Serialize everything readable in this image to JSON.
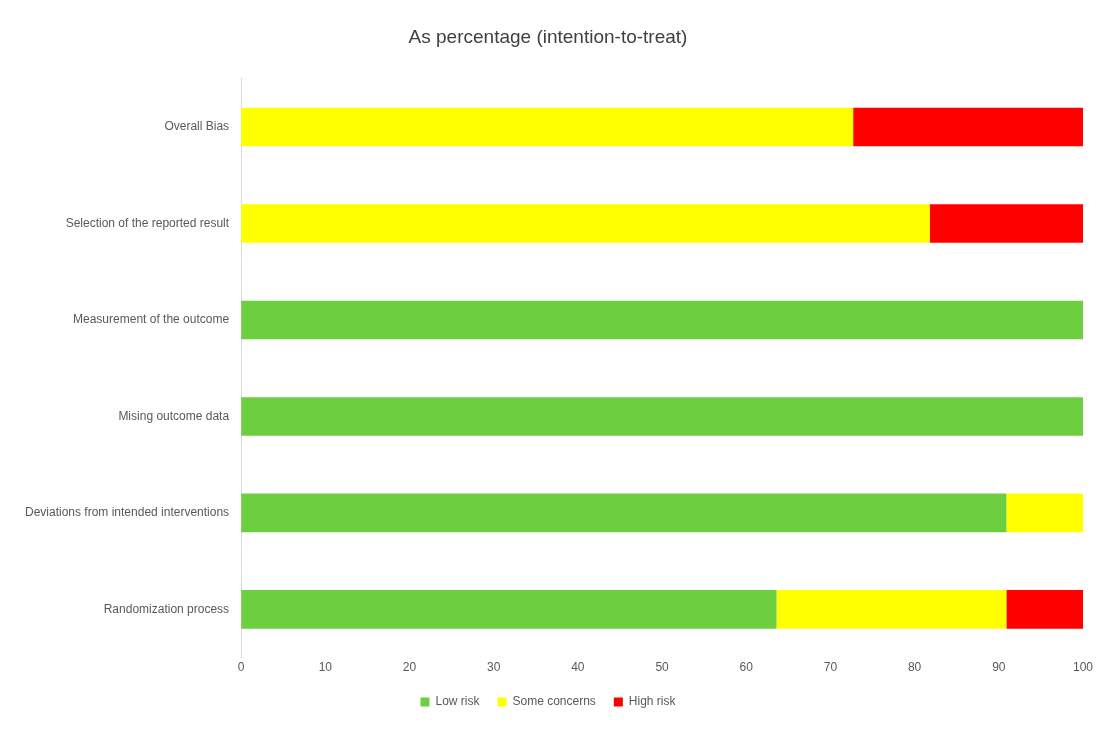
{
  "chart_data": {
    "type": "bar",
    "title": "As percentage (intention-to-treat)",
    "orientation": "horizontal",
    "stacked": true,
    "categories": [
      "Overall Bias",
      "Selection of the reported result",
      "Measurement of the outcome",
      "Mising outcome data",
      "Deviations from intended interventions",
      "Randomization process"
    ],
    "series": [
      {
        "name": "Low risk",
        "color": "#6dcf3f",
        "values": [
          0,
          0,
          100,
          100,
          90.9,
          63.6
        ]
      },
      {
        "name": "Some concerns",
        "color": "#ffff00",
        "values": [
          72.7,
          81.8,
          0,
          0,
          9.1,
          27.3
        ]
      },
      {
        "name": "High risk",
        "color": "#ff0000",
        "values": [
          27.3,
          18.2,
          0,
          0,
          0,
          9.1
        ]
      }
    ],
    "xlim": [
      0,
      100
    ],
    "xticks": [
      0,
      10,
      20,
      30,
      40,
      50,
      60,
      70,
      80,
      90,
      100
    ],
    "grid": false,
    "legend": "bottom"
  }
}
